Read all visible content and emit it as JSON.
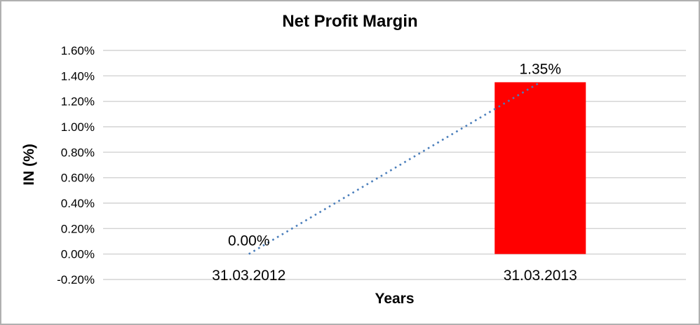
{
  "frame": {
    "background": "#ffffff",
    "border_color": "#b0b0b0"
  },
  "chart_data": {
    "type": "bar",
    "title": "Net Profit Margin",
    "xlabel": "Years",
    "ylabel": "IN (%)",
    "categories": [
      "31.03.2012",
      "31.03.2013"
    ],
    "series": [
      {
        "name": "Net Profit Margin",
        "values": [
          0.0,
          1.35
        ]
      }
    ],
    "data_labels": [
      "0.00%",
      "1.35%"
    ],
    "value_unit": "percent",
    "bar_color": "#ff0000",
    "ylim": [
      -0.2,
      1.6
    ],
    "ytick_step": 0.2,
    "yticks": [
      {
        "value": 1.6,
        "label": "1.60%"
      },
      {
        "value": 1.4,
        "label": "1.40%"
      },
      {
        "value": 1.2,
        "label": "1.20%"
      },
      {
        "value": 1.0,
        "label": "1.00%"
      },
      {
        "value": 0.8,
        "label": "0.80%"
      },
      {
        "value": 0.6,
        "label": "0.60%"
      },
      {
        "value": 0.4,
        "label": "0.40%"
      },
      {
        "value": 0.2,
        "label": "0.20%"
      },
      {
        "value": 0.0,
        "label": "0.00%"
      },
      {
        "value": -0.2,
        "label": "-0.20%"
      }
    ],
    "grid": true,
    "gridline_color": "#d3d3d3",
    "legend": "none",
    "trendline": {
      "style": "dotted",
      "color": "#4a7ebb",
      "from_category_index": 0,
      "from_value": 0.0,
      "to_category_index": 1,
      "to_value": 1.35
    }
  }
}
